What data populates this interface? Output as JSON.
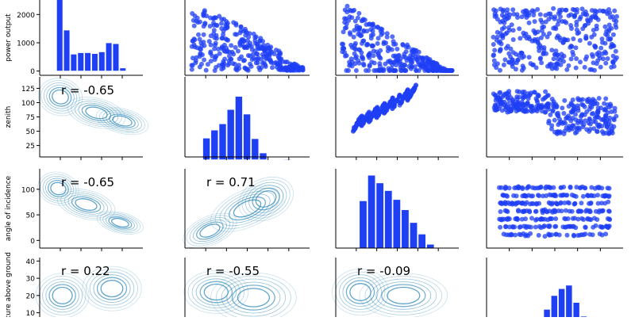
{
  "chart_data": {
    "type": "pairplot",
    "title": "",
    "variables": [
      "power output",
      "zenith",
      "angle of incidence",
      "temperature above ground"
    ],
    "ylabels": [
      "power output",
      "zenith",
      "angle of incidence",
      "ature above ground"
    ],
    "colors": {
      "scatter": "#1f3ff5",
      "hist": "#1f3ff5",
      "kde": "#2c86b8",
      "axis": "#000000",
      "background": "#ffffff"
    },
    "y_axes": [
      {
        "lim": [
          -150,
          2850
        ],
        "ticks": [
          0,
          1000,
          2000
        ],
        "ticklabels": [
          "0",
          "1000",
          "2000"
        ]
      },
      {
        "lim": [
          5,
          145
        ],
        "ticks": [
          25,
          50,
          75,
          100,
          125
        ],
        "ticklabels": [
          "25",
          "50",
          "75",
          "100",
          "125"
        ]
      },
      {
        "lim": [
          -15,
          140
        ],
        "ticks": [
          0,
          50,
          100
        ],
        "ticklabels": [
          "0",
          "50",
          "100"
        ]
      },
      {
        "lim": [
          2,
          42
        ],
        "ticks": [
          10,
          20,
          30,
          40
        ],
        "ticklabels": [
          "10",
          "20",
          "30",
          "40"
        ]
      }
    ],
    "histograms": [
      {
        "bin_edges": [
          0,
          1,
          2,
          3,
          4,
          5,
          6,
          7,
          8,
          9,
          10
        ],
        "counts": [
          2700,
          1450,
          600,
          650,
          650,
          620,
          680,
          1000,
          970,
          110
        ],
        "ylim": [
          -150,
          2850
        ]
      },
      {
        "bin_edges": [
          0,
          1,
          2,
          3,
          4,
          5,
          6,
          7,
          8,
          9,
          10,
          11,
          12
        ],
        "counts": [
          38,
          52,
          63,
          88,
          111,
          80,
          37,
          12,
          0,
          0,
          1,
          0
        ],
        "ylim": [
          5,
          145
        ]
      },
      {
        "bin_edges": [
          0,
          1,
          2,
          3,
          4,
          5,
          6,
          7,
          8,
          9,
          10,
          11,
          12
        ],
        "counts": [
          0,
          37,
          57,
          51,
          45,
          38,
          30,
          20,
          11,
          3,
          0,
          0
        ],
        "ylim": [
          0,
          62
        ]
      },
      {
        "bin_edges": [
          0,
          1,
          2,
          3,
          4,
          5,
          6,
          7,
          8,
          9,
          10,
          11,
          12,
          13
        ],
        "counts": [
          0,
          0,
          0,
          0,
          5,
          9,
          11,
          12,
          7,
          3,
          0,
          0,
          0
        ],
        "ylim": [
          0,
          20
        ]
      }
    ],
    "correlations": [
      {
        "row": 1,
        "col": 0,
        "label": "r = -0.65"
      },
      {
        "row": 2,
        "col": 0,
        "label": "r = -0.65"
      },
      {
        "row": 2,
        "col": 1,
        "label": "r = 0.71"
      },
      {
        "row": 3,
        "col": 0,
        "label": "r = 0.22"
      },
      {
        "row": 3,
        "col": 1,
        "label": "r = -0.55"
      },
      {
        "row": 3,
        "col": 2,
        "label": "r = -0.09"
      }
    ],
    "upper_scatter_pairs": [
      {
        "row": 0,
        "col": 1,
        "shape": "triangle-decreasing"
      },
      {
        "row": 0,
        "col": 2,
        "shape": "diagonal-decreasing"
      },
      {
        "row": 0,
        "col": 3,
        "shape": "uniform-cloud"
      },
      {
        "row": 1,
        "col": 2,
        "shape": "rising-streaks"
      },
      {
        "row": 1,
        "col": 3,
        "shape": "step-down-band"
      },
      {
        "row": 2,
        "col": 3,
        "shape": "horizontal-bands"
      }
    ],
    "lower_kde_pairs": [
      {
        "row": 1,
        "col": 0,
        "shape": "negative"
      },
      {
        "row": 2,
        "col": 0,
        "shape": "negative-strong"
      },
      {
        "row": 2,
        "col": 1,
        "shape": "positive"
      },
      {
        "row": 3,
        "col": 0,
        "shape": "flat"
      },
      {
        "row": 3,
        "col": 1,
        "shape": "flat-left"
      },
      {
        "row": 3,
        "col": 2,
        "shape": "flat-left-tight"
      }
    ]
  }
}
